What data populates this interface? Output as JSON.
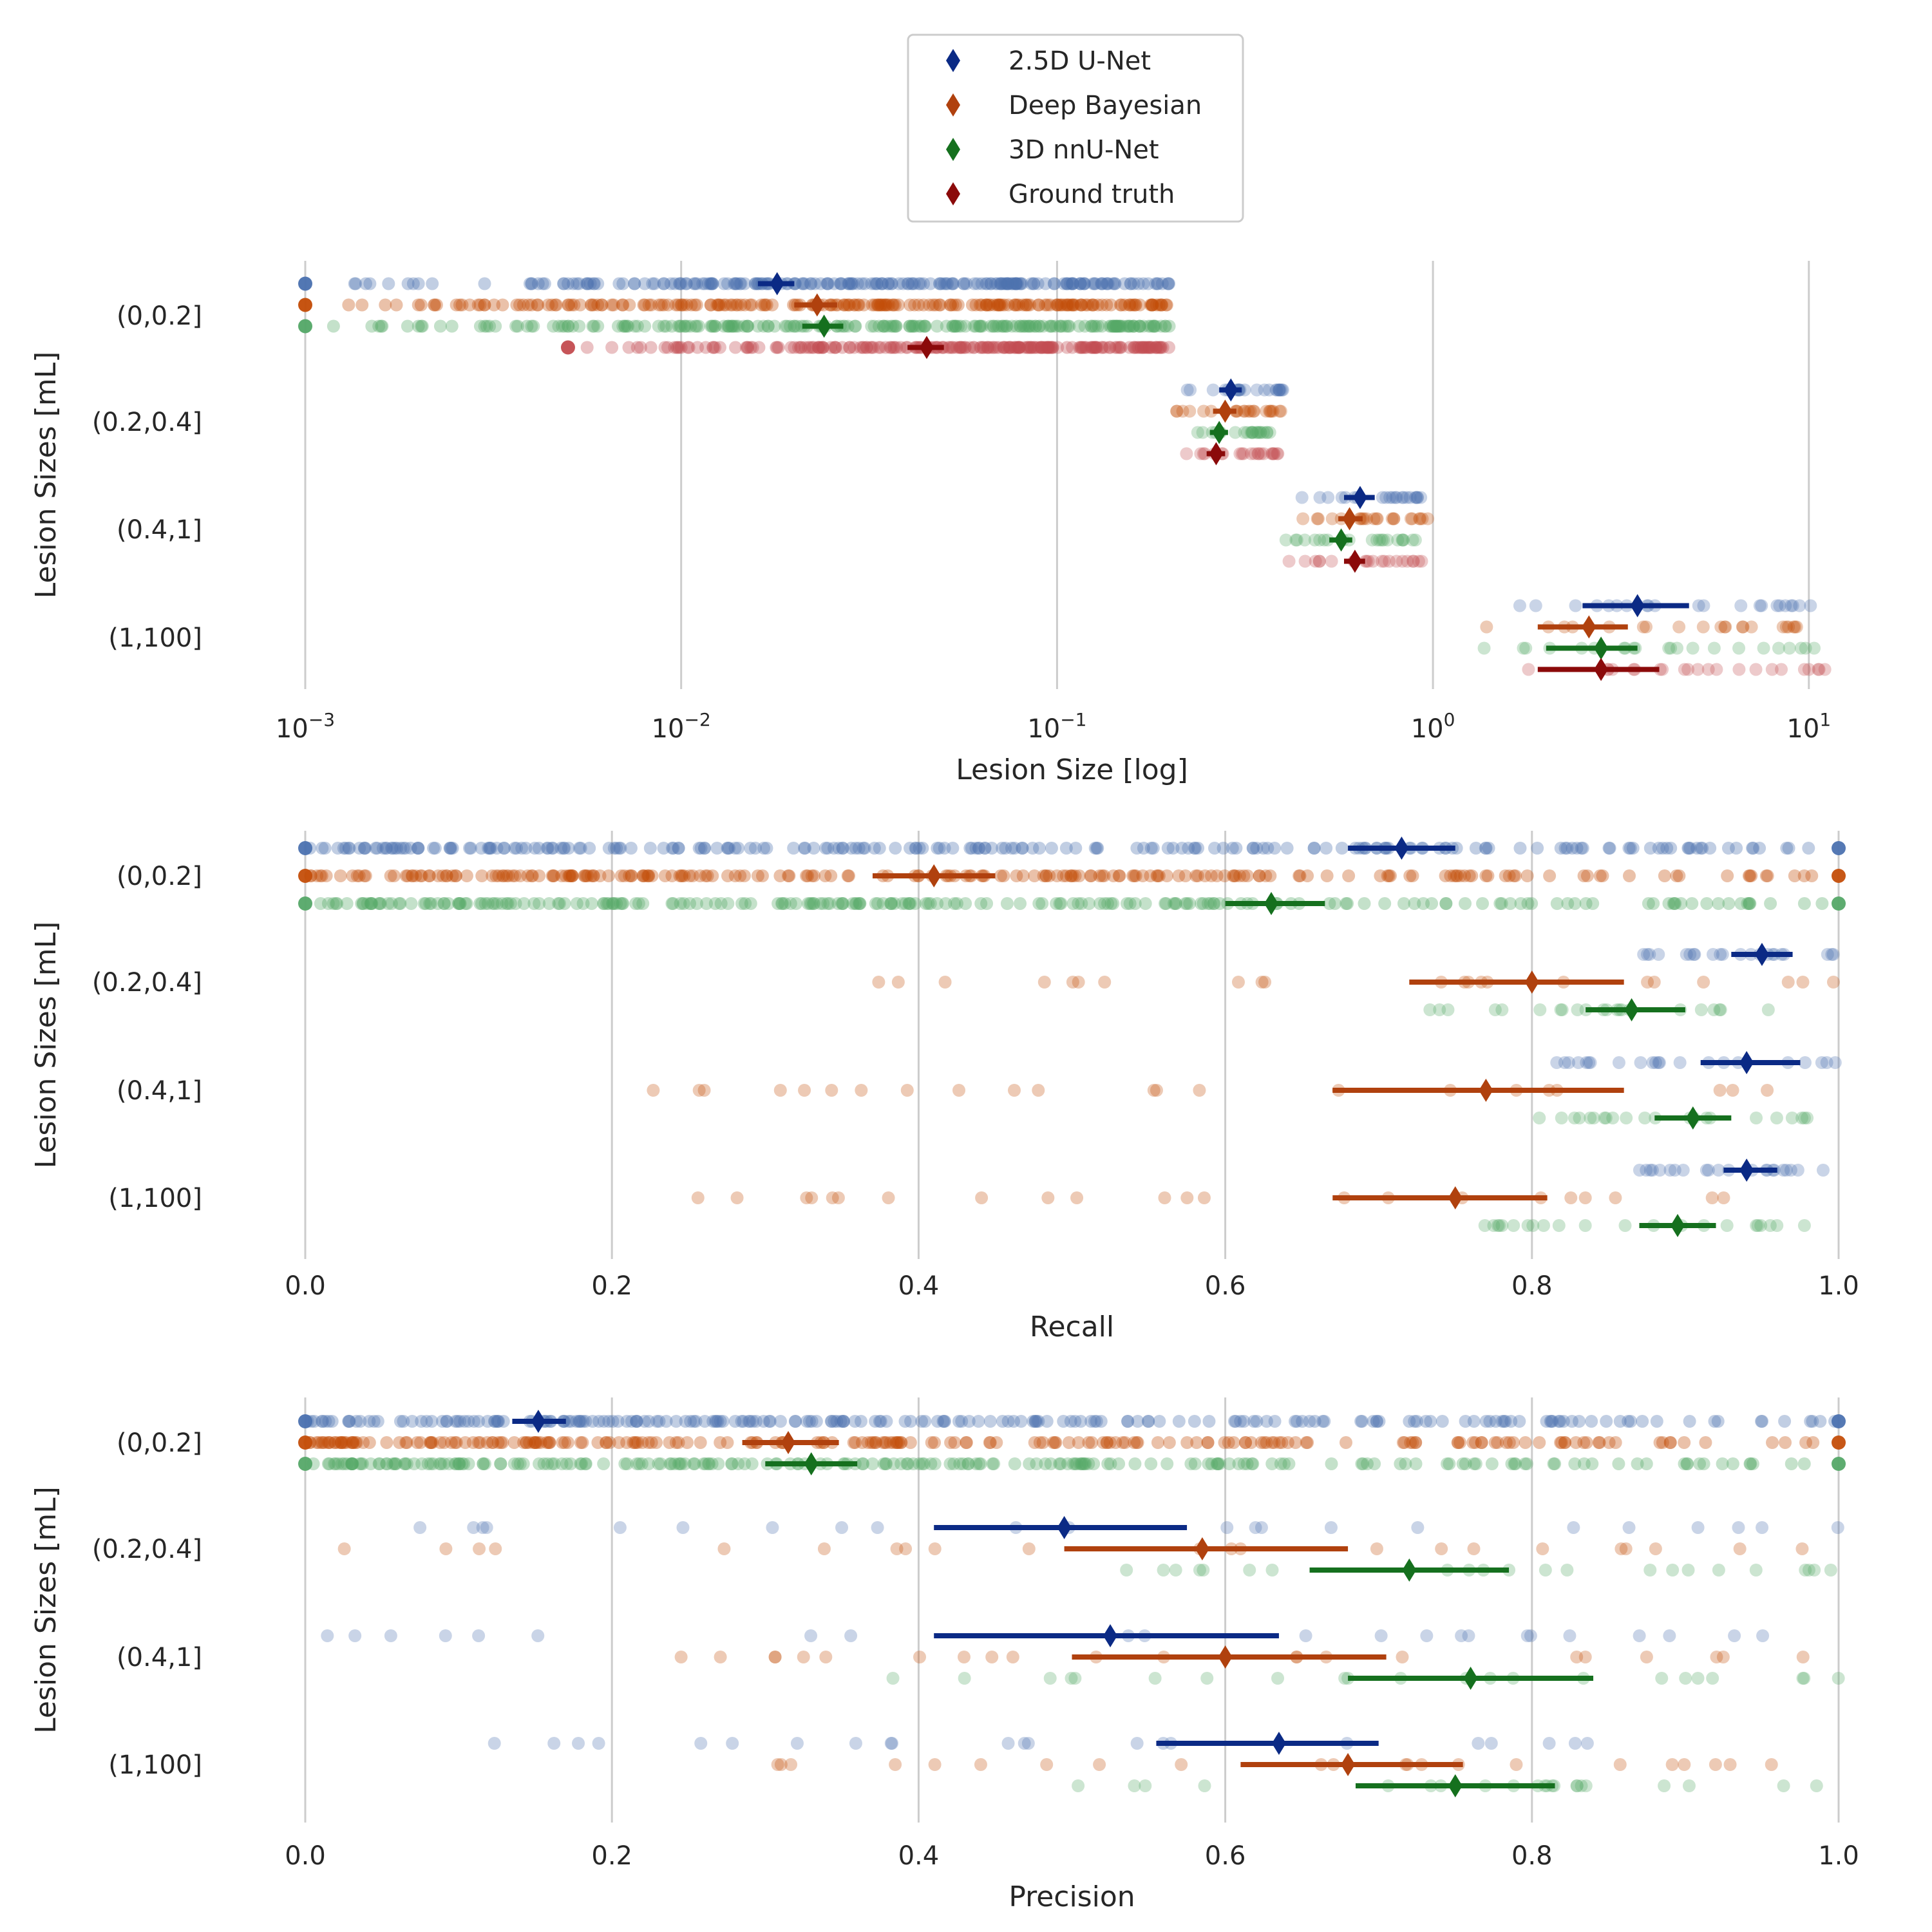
{
  "legend": {
    "entries": [
      {
        "label": "2.5D U-Net",
        "color": "#0b2a85"
      },
      {
        "label": "Deep Bayesian",
        "color": "#b0410e"
      },
      {
        "label": "3D nnU-Net",
        "color": "#15701e"
      },
      {
        "label": "Ground truth",
        "color": "#8b0a0a"
      }
    ]
  },
  "point_colors": [
    "#4c72b0",
    "#c44e0a",
    "#55a868",
    "#c44e52"
  ],
  "chart_data": [
    {
      "type": "strip",
      "xlabel": "Lesion Size [log]",
      "ylabel": "Lesion Sizes [mL]",
      "xscale": "log",
      "xlim": [
        0.001,
        12
      ],
      "xticks": [
        {
          "value": 0.001,
          "base": "10",
          "exp": "−3"
        },
        {
          "value": 0.01,
          "base": "10",
          "exp": "−2"
        },
        {
          "value": 0.1,
          "base": "10",
          "exp": "−1"
        },
        {
          "value": 1,
          "base": "10",
          "exp": "0"
        },
        {
          "value": 10,
          "base": "10",
          "exp": "1"
        }
      ],
      "categories": [
        "(0,0.2]",
        "(0.2,0.4]",
        "(0.4,1]",
        "(1,100]"
      ],
      "series": [
        {
          "name": "2.5D U-Net",
          "summary": [
            {
              "mean": 0.018,
              "lo": 0.016,
              "hi": 0.02,
              "pts_range": [
                0.001,
                0.2
              ],
              "dense": true
            },
            {
              "mean": 0.29,
              "lo": 0.27,
              "hi": 0.31,
              "pts_range": [
                0.2,
                0.4
              ]
            },
            {
              "mean": 0.64,
              "lo": 0.58,
              "hi": 0.7,
              "pts_range": [
                0.4,
                0.95
              ]
            },
            {
              "mean": 3.5,
              "lo": 2.5,
              "hi": 4.8,
              "pts_range": [
                1.0,
                11.5
              ]
            }
          ]
        },
        {
          "name": "Deep Bayesian",
          "summary": [
            {
              "mean": 0.023,
              "lo": 0.02,
              "hi": 0.026,
              "pts_range": [
                0.001,
                0.2
              ],
              "dense": true
            },
            {
              "mean": 0.28,
              "lo": 0.26,
              "hi": 0.3,
              "pts_range": [
                0.2,
                0.4
              ]
            },
            {
              "mean": 0.6,
              "lo": 0.56,
              "hi": 0.65,
              "pts_range": [
                0.4,
                0.98
              ]
            },
            {
              "mean": 2.6,
              "lo": 1.9,
              "hi": 3.3,
              "pts_range": [
                1.0,
                11.5
              ]
            }
          ]
        },
        {
          "name": "3D nnU-Net",
          "summary": [
            {
              "mean": 0.024,
              "lo": 0.021,
              "hi": 0.027,
              "pts_range": [
                0.001,
                0.2
              ],
              "dense": true
            },
            {
              "mean": 0.27,
              "lo": 0.255,
              "hi": 0.285,
              "pts_range": [
                0.22,
                0.38
              ]
            },
            {
              "mean": 0.57,
              "lo": 0.53,
              "hi": 0.61,
              "pts_range": [
                0.4,
                0.95
              ]
            },
            {
              "mean": 2.8,
              "lo": 2.0,
              "hi": 3.5,
              "pts_range": [
                1.0,
                11.0
              ]
            }
          ]
        },
        {
          "name": "Ground truth",
          "summary": [
            {
              "mean": 0.045,
              "lo": 0.04,
              "hi": 0.05,
              "pts_range": [
                0.005,
                0.2
              ],
              "dense": true
            },
            {
              "mean": 0.265,
              "lo": 0.25,
              "hi": 0.28,
              "pts_range": [
                0.2,
                0.4
              ]
            },
            {
              "mean": 0.62,
              "lo": 0.58,
              "hi": 0.66,
              "pts_range": [
                0.4,
                0.95
              ]
            },
            {
              "mean": 2.8,
              "lo": 1.9,
              "hi": 4.0,
              "pts_range": [
                1.0,
                11.5
              ]
            }
          ]
        }
      ]
    },
    {
      "type": "strip",
      "xlabel": "Recall",
      "ylabel": "Lesion Sizes [mL]",
      "xscale": "linear",
      "xlim": [
        0,
        1
      ],
      "xticks": [
        {
          "value": 0,
          "label": "0.0"
        },
        {
          "value": 0.2,
          "label": "0.2"
        },
        {
          "value": 0.4,
          "label": "0.4"
        },
        {
          "value": 0.6,
          "label": "0.6"
        },
        {
          "value": 0.8,
          "label": "0.8"
        },
        {
          "value": 1,
          "label": "1.0"
        }
      ],
      "categories": [
        "(0,0.2]",
        "(0.2,0.4]",
        "(0.4,1]",
        "(1,100]"
      ],
      "series": [
        {
          "name": "2.5D U-Net",
          "summary": [
            {
              "mean": 0.715,
              "lo": 0.68,
              "hi": 0.75,
              "pts_range": [
                0.0,
                1.0
              ],
              "dense": true
            },
            {
              "mean": 0.95,
              "lo": 0.93,
              "hi": 0.97,
              "pts_range": [
                0.86,
                1.0
              ]
            },
            {
              "mean": 0.94,
              "lo": 0.91,
              "hi": 0.975,
              "pts_range": [
                0.8,
                1.0
              ]
            },
            {
              "mean": 0.94,
              "lo": 0.925,
              "hi": 0.96,
              "pts_range": [
                0.87,
                0.99
              ]
            }
          ]
        },
        {
          "name": "Deep Bayesian",
          "summary": [
            {
              "mean": 0.41,
              "lo": 0.37,
              "hi": 0.45,
              "pts_range": [
                0.0,
                1.0
              ],
              "dense": true
            },
            {
              "mean": 0.8,
              "lo": 0.72,
              "hi": 0.86,
              "pts_range": [
                0.3,
                1.0
              ]
            },
            {
              "mean": 0.77,
              "lo": 0.67,
              "hi": 0.86,
              "pts_range": [
                0.21,
                0.98
              ]
            },
            {
              "mean": 0.75,
              "lo": 0.67,
              "hi": 0.81,
              "pts_range": [
                0.25,
                0.95
              ]
            }
          ]
        },
        {
          "name": "3D nnU-Net",
          "summary": [
            {
              "mean": 0.63,
              "lo": 0.6,
              "hi": 0.665,
              "pts_range": [
                0.0,
                1.0
              ],
              "dense": true
            },
            {
              "mean": 0.865,
              "lo": 0.835,
              "hi": 0.9,
              "pts_range": [
                0.71,
                1.0
              ]
            },
            {
              "mean": 0.905,
              "lo": 0.88,
              "hi": 0.93,
              "pts_range": [
                0.8,
                0.98
              ]
            },
            {
              "mean": 0.895,
              "lo": 0.87,
              "hi": 0.92,
              "pts_range": [
                0.76,
                0.98
              ]
            }
          ]
        }
      ]
    },
    {
      "type": "strip",
      "xlabel": "Precision",
      "ylabel": "Lesion Sizes [mL]",
      "xscale": "linear",
      "xlim": [
        0,
        1
      ],
      "xticks": [
        {
          "value": 0,
          "label": "0.0"
        },
        {
          "value": 0.2,
          "label": "0.2"
        },
        {
          "value": 0.4,
          "label": "0.4"
        },
        {
          "value": 0.6,
          "label": "0.6"
        },
        {
          "value": 0.8,
          "label": "0.8"
        },
        {
          "value": 1,
          "label": "1.0"
        }
      ],
      "categories": [
        "(0,0.2]",
        "(0.2,0.4]",
        "(0.4,1]",
        "(1,100]"
      ],
      "series": [
        {
          "name": "2.5D U-Net",
          "summary": [
            {
              "mean": 0.152,
              "lo": 0.135,
              "hi": 0.17,
              "pts_range": [
                0.0,
                1.0
              ],
              "dense": true
            },
            {
              "mean": 0.495,
              "lo": 0.41,
              "hi": 0.575,
              "pts_range": [
                0.0,
                1.0
              ]
            },
            {
              "mean": 0.525,
              "lo": 0.41,
              "hi": 0.635,
              "pts_range": [
                0.0,
                1.0
              ]
            },
            {
              "mean": 0.635,
              "lo": 0.555,
              "hi": 0.7,
              "pts_range": [
                0.0,
                0.87
              ]
            }
          ]
        },
        {
          "name": "Deep Bayesian",
          "summary": [
            {
              "mean": 0.315,
              "lo": 0.285,
              "hi": 0.348,
              "pts_range": [
                0.0,
                1.0
              ],
              "dense": true
            },
            {
              "mean": 0.585,
              "lo": 0.495,
              "hi": 0.68,
              "pts_range": [
                0.0,
                1.0
              ]
            },
            {
              "mean": 0.6,
              "lo": 0.5,
              "hi": 0.705,
              "pts_range": [
                0.2,
                1.0
              ]
            },
            {
              "mean": 0.68,
              "lo": 0.61,
              "hi": 0.755,
              "pts_range": [
                0.24,
                1.0
              ]
            }
          ]
        },
        {
          "name": "3D nnU-Net",
          "summary": [
            {
              "mean": 0.33,
              "lo": 0.3,
              "hi": 0.36,
              "pts_range": [
                0.0,
                1.0
              ],
              "dense": true
            },
            {
              "mean": 0.72,
              "lo": 0.655,
              "hi": 0.785,
              "pts_range": [
                0.48,
                1.0
              ]
            },
            {
              "mean": 0.76,
              "lo": 0.68,
              "hi": 0.84,
              "pts_range": [
                0.33,
                1.0
              ]
            },
            {
              "mean": 0.75,
              "lo": 0.685,
              "hi": 0.815,
              "pts_range": [
                0.48,
                1.0
              ]
            }
          ]
        }
      ]
    }
  ]
}
